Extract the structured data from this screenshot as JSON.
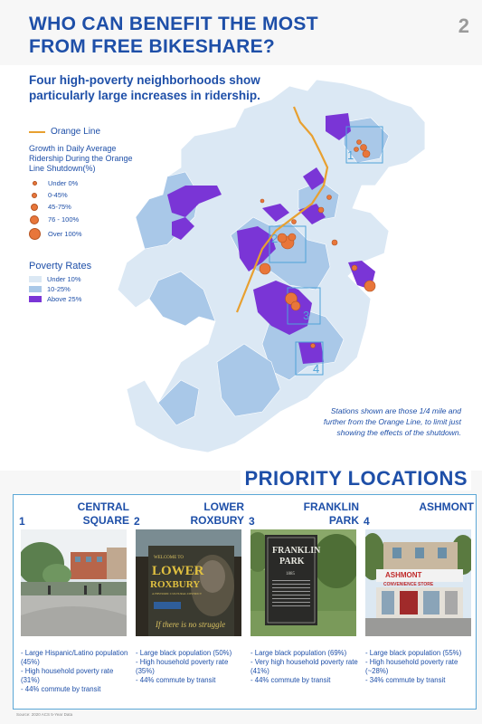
{
  "header": {
    "title_line1": "WHO CAN BENEFIT THE MOST",
    "title_line2": "FROM FREE BIKESHARE?",
    "page_number": "2"
  },
  "subtitle_line1": "Four high-poverty neighborhoods show",
  "subtitle_line2": "particularly large increases in ridership.",
  "legend": {
    "orange_line": "Orange Line",
    "growth_title_1": "Growth in Daily Average",
    "growth_title_2": "Ridership During the Orange",
    "growth_title_3": "Line Shutdown(%)",
    "growth_items": [
      "Under 0%",
      "0-45%",
      "45-75%",
      "76 - 100%",
      "Over 100%"
    ],
    "poverty_title": "Poverty Rates",
    "poverty_items": [
      "Under 10%",
      "10-25%",
      "Above 25%"
    ]
  },
  "map_labels": [
    "1",
    "2",
    "3",
    "4"
  ],
  "colors": {
    "accent": "#1e4fa8",
    "orange_line": "#e8a030",
    "station_dot": "#e8763a",
    "poverty_low": "#dbe8f4",
    "poverty_mid": "#a9c8e8",
    "poverty_high": "#7a35d6",
    "panel_border": "#5ba7d6"
  },
  "note_line1": "Stations shown are those 1/4 mile and",
  "note_line2": "further from the Orange Line, to limit just",
  "note_line3": "showing the effects of the shutdown.",
  "priority_title": "PRIORITY LOCATIONS",
  "locations": [
    {
      "number": "1",
      "name_line1": "CENTRAL",
      "name_line2": "SQUARE",
      "facts": [
        "- Large Hispanic/Latino population (45%)",
        "- High household poverty rate (31%)",
        "- 44% commute by transit"
      ]
    },
    {
      "number": "2",
      "name_line1": "LOWER",
      "name_line2": "ROXBURY",
      "facts": [
        "- Large black population (50%)",
        "- High household poverty rate (35%)",
        "- 44% commute by transit"
      ]
    },
    {
      "number": "3",
      "name_line1": "FRANKLIN",
      "name_line2": "PARK",
      "facts": [
        "- Large black population (69%)",
        "- Very high household poverty rate (41%)",
        "- 44% commute by transit"
      ]
    },
    {
      "number": "4",
      "name_line1": "",
      "name_line2": "ASHMONT",
      "facts": [
        "- Large black population (55%)",
        "- High household poverty rate (~28%)",
        "- 34% commute by transit"
      ]
    }
  ],
  "photo_text": {
    "roxbury_welcome": "WELCOME TO",
    "roxbury_lower": "LOWER",
    "roxbury_roxbury": "ROXBURY",
    "roxbury_sub": "A HISTORIC CULTURAL DISTRICT",
    "roxbury_quote": "If there is no struggle",
    "franklin_1": "FRANKLIN",
    "franklin_2": "PARK",
    "franklin_year": "1885",
    "ashmont_1": "ASHMONT",
    "ashmont_2": "CONVENIENCE STORE"
  },
  "source": "Source: 2020 ACS 5-Year Data"
}
